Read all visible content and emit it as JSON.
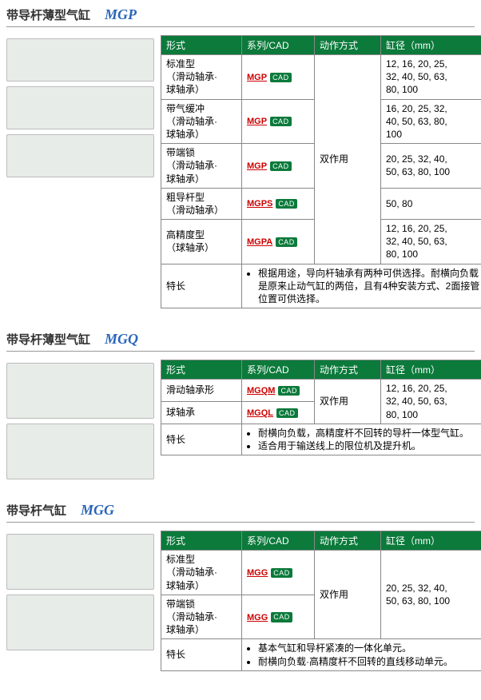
{
  "headers": {
    "form": "形式",
    "series": "系列/CAD",
    "action": "动作方式",
    "diameter": "缸径（mm）",
    "feature": "特长"
  },
  "cad_label": "CAD",
  "sections": [
    {
      "title": "带导杆薄型气缸",
      "code": "MGP",
      "img_count": 3,
      "action": "双作用",
      "rows": [
        {
          "form": "标准型\n（滑动轴承·\n球轴承）",
          "series": "MGP",
          "diameter": "12, 16, 20, 25,\n32, 40, 50, 63,\n80, 100"
        },
        {
          "form": "带气缓冲\n（滑动轴承·\n球轴承）",
          "series": "MGP",
          "diameter": "16, 20, 25, 32,\n40, 50, 63, 80,\n100"
        },
        {
          "form": "带端锁\n（滑动轴承·\n球轴承）",
          "series": "MGP",
          "diameter": "20, 25, 32, 40,\n50, 63, 80, 100"
        },
        {
          "form": "粗导杆型\n（滑动轴承）",
          "series": "MGPS",
          "diameter": "50, 80"
        },
        {
          "form": "高精度型\n（球轴承）",
          "series": "MGPA",
          "diameter": "12, 16, 20, 25,\n32, 40, 50, 63,\n80, 100"
        }
      ],
      "feature": "根据用途，导向杆轴承有两种可供选择。耐横向负载是原来止动气缸的两倍，且有4种安装方式、2面接管位置可供选择。"
    },
    {
      "title": "带导杆薄型气缸",
      "code": "MGQ",
      "img_count": 2,
      "action": "双作用",
      "rows": [
        {
          "form": "滑动轴承形",
          "series": "MGQM",
          "diameter": "12, 16, 20, 25,\n32, 40, 50, 63,\n80, 100",
          "dia_rowspan": 2
        },
        {
          "form": "球轴承",
          "series": "MGQL"
        }
      ],
      "feature_list": [
        "耐横向负载，高精度杆不回转的导杆一体型气缸。",
        "适合用于输送线上的限位机及提升机。"
      ]
    },
    {
      "title": "带导杆气缸",
      "code": "MGG",
      "img_count": 2,
      "action": "双作用",
      "rows": [
        {
          "form": "标准型\n（滑动轴承·\n球轴承）",
          "series": "MGG",
          "diameter": "20, 25, 32, 40,\n50, 63, 80, 100",
          "dia_rowspan": 2
        },
        {
          "form": "带端锁\n（滑动轴承·\n球轴承）",
          "series": "MGG"
        }
      ],
      "feature_list": [
        "基本气缸和导杆紧凑的一体化单元。",
        "耐横向负载·高精度杆不回转的直线移动单元。"
      ]
    }
  ]
}
